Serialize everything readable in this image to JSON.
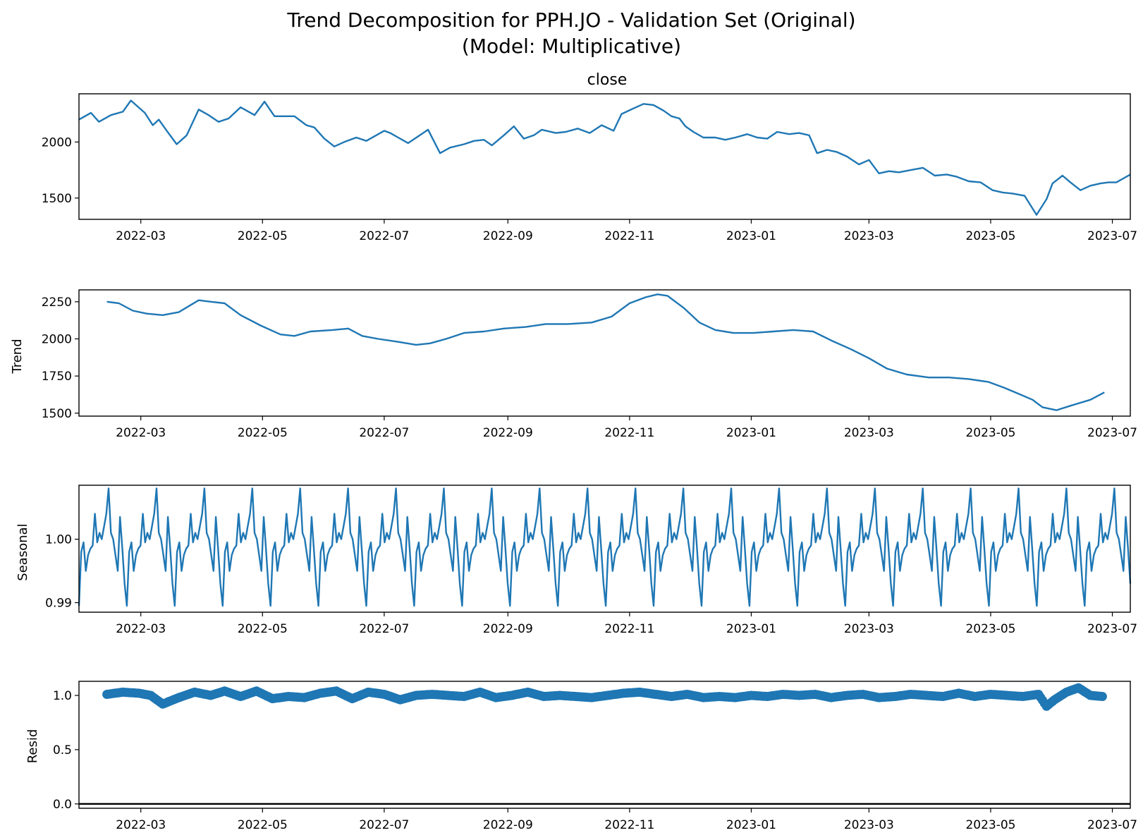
{
  "figure": {
    "title_line1": "Trend Decomposition for PPH.JO - Validation Set (Original)",
    "title_line2": "(Model: Multiplicative)"
  },
  "colors": {
    "series": "#1f77b4",
    "axes": "#000000",
    "background": "#ffffff"
  },
  "chart_data": [
    {
      "type": "line",
      "title": "close",
      "ylabel": "",
      "xlim": [
        "2022-01-29",
        "2023-07-10"
      ],
      "ylim": [
        1310,
        2430
      ],
      "yticks": [
        1500,
        2000
      ],
      "ytick_labels": [
        "1500",
        "2000"
      ],
      "xticks": [
        "2022-03-01",
        "2022-05-01",
        "2022-07-01",
        "2022-09-01",
        "2022-11-01",
        "2023-01-01",
        "2023-03-01",
        "2023-05-01",
        "2023-07-01"
      ],
      "xtick_labels": [
        "2022-03",
        "2022-05",
        "2022-07",
        "2022-09",
        "2022-11",
        "2023-01",
        "2023-03",
        "2023-05",
        "2023-07"
      ],
      "x": [
        "2022-01-29",
        "2022-02-04",
        "2022-02-08",
        "2022-02-14",
        "2022-02-20",
        "2022-02-24",
        "2022-03-03",
        "2022-03-07",
        "2022-03-10",
        "2022-03-14",
        "2022-03-19",
        "2022-03-24",
        "2022-03-30",
        "2022-04-04",
        "2022-04-09",
        "2022-04-14",
        "2022-04-20",
        "2022-04-27",
        "2022-05-02",
        "2022-05-07",
        "2022-05-12",
        "2022-05-17",
        "2022-05-23",
        "2022-05-27",
        "2022-06-01",
        "2022-06-06",
        "2022-06-11",
        "2022-06-17",
        "2022-06-22",
        "2022-06-27",
        "2022-07-01",
        "2022-07-04",
        "2022-07-08",
        "2022-07-13",
        "2022-07-18",
        "2022-07-23",
        "2022-07-29",
        "2022-08-03",
        "2022-08-10",
        "2022-08-15",
        "2022-08-20",
        "2022-08-24",
        "2022-08-30",
        "2022-09-04",
        "2022-09-09",
        "2022-09-14",
        "2022-09-18",
        "2022-09-25",
        "2022-09-30",
        "2022-10-06",
        "2022-10-12",
        "2022-10-18",
        "2022-10-24",
        "2022-10-28",
        "2022-11-03",
        "2022-11-08",
        "2022-11-13",
        "2022-11-18",
        "2022-11-22",
        "2022-11-26",
        "2022-11-29",
        "2022-12-03",
        "2022-12-08",
        "2022-12-14",
        "2022-12-19",
        "2022-12-24",
        "2022-12-30",
        "2023-01-04",
        "2023-01-09",
        "2023-01-14",
        "2023-01-20",
        "2023-01-25",
        "2023-01-30",
        "2023-02-03",
        "2023-02-08",
        "2023-02-13",
        "2023-02-18",
        "2023-02-24",
        "2023-03-01",
        "2023-03-06",
        "2023-03-11",
        "2023-03-16",
        "2023-03-22",
        "2023-03-28",
        "2023-04-03",
        "2023-04-09",
        "2023-04-14",
        "2023-04-20",
        "2023-04-26",
        "2023-05-02",
        "2023-05-07",
        "2023-05-12",
        "2023-05-18",
        "2023-05-24",
        "2023-05-29",
        "2023-06-01",
        "2023-06-06",
        "2023-06-10",
        "2023-06-15",
        "2023-06-20",
        "2023-06-25",
        "2023-06-29",
        "2023-07-03",
        "2023-07-10"
      ],
      "values": [
        2200,
        2260,
        2180,
        2240,
        2270,
        2370,
        2260,
        2150,
        2200,
        2100,
        1980,
        2060,
        2290,
        2240,
        2180,
        2210,
        2310,
        2240,
        2360,
        2230,
        2230,
        2230,
        2150,
        2130,
        2030,
        1960,
        2000,
        2040,
        2010,
        2060,
        2100,
        2080,
        2040,
        1990,
        2050,
        2110,
        1900,
        1950,
        1980,
        2010,
        2020,
        1970,
        2060,
        2140,
        2030,
        2060,
        2110,
        2080,
        2090,
        2120,
        2080,
        2150,
        2100,
        2250,
        2300,
        2340,
        2330,
        2280,
        2230,
        2210,
        2140,
        2090,
        2040,
        2040,
        2020,
        2040,
        2070,
        2040,
        2030,
        2090,
        2070,
        2080,
        2060,
        1900,
        1930,
        1910,
        1870,
        1800,
        1840,
        1720,
        1740,
        1730,
        1750,
        1770,
        1700,
        1710,
        1690,
        1650,
        1640,
        1570,
        1550,
        1540,
        1520,
        1350,
        1490,
        1630,
        1700,
        1640,
        1570,
        1610,
        1630,
        1640,
        1640,
        1710
      ]
    },
    {
      "type": "line",
      "title": "",
      "ylabel": "Trend",
      "xlim": [
        "2022-01-29",
        "2023-07-10"
      ],
      "ylim": [
        1480,
        2330
      ],
      "yticks": [
        1500,
        1750,
        2000,
        2250
      ],
      "ytick_labels": [
        "1500",
        "1750",
        "2000",
        "2250"
      ],
      "xticks": [
        "2022-03-01",
        "2022-05-01",
        "2022-07-01",
        "2022-09-01",
        "2022-11-01",
        "2023-01-01",
        "2023-03-01",
        "2023-05-01",
        "2023-07-01"
      ],
      "xtick_labels": [
        "2022-03",
        "2022-05",
        "2022-07",
        "2022-09",
        "2022-11",
        "2023-01",
        "2023-03",
        "2023-05",
        "2023-07"
      ],
      "x": [
        "2022-02-12",
        "2022-02-18",
        "2022-02-25",
        "2022-03-04",
        "2022-03-12",
        "2022-03-20",
        "2022-03-30",
        "2022-04-05",
        "2022-04-12",
        "2022-04-20",
        "2022-04-30",
        "2022-05-10",
        "2022-05-17",
        "2022-05-25",
        "2022-06-05",
        "2022-06-13",
        "2022-06-20",
        "2022-06-28",
        "2022-07-08",
        "2022-07-17",
        "2022-07-24",
        "2022-08-01",
        "2022-08-10",
        "2022-08-20",
        "2022-08-30",
        "2022-09-10",
        "2022-09-20",
        "2022-10-01",
        "2022-10-13",
        "2022-10-23",
        "2022-11-01",
        "2022-11-09",
        "2022-11-15",
        "2022-11-20",
        "2022-11-28",
        "2022-12-06",
        "2022-12-14",
        "2022-12-23",
        "2023-01-02",
        "2023-01-12",
        "2023-01-22",
        "2023-02-01",
        "2023-02-10",
        "2023-02-20",
        "2023-03-01",
        "2023-03-10",
        "2023-03-20",
        "2023-03-31",
        "2023-04-10",
        "2023-04-20",
        "2023-04-30",
        "2023-05-08",
        "2023-05-15",
        "2023-05-22",
        "2023-05-27",
        "2023-06-03",
        "2023-06-10",
        "2023-06-20",
        "2023-06-27"
      ],
      "values": [
        2250,
        2240,
        2190,
        2170,
        2160,
        2180,
        2260,
        2250,
        2240,
        2160,
        2090,
        2030,
        2020,
        2050,
        2060,
        2070,
        2020,
        2000,
        1980,
        1960,
        1970,
        2000,
        2040,
        2050,
        2070,
        2080,
        2100,
        2100,
        2110,
        2150,
        2240,
        2280,
        2300,
        2290,
        2210,
        2110,
        2060,
        2040,
        2040,
        2050,
        2060,
        2050,
        1990,
        1930,
        1870,
        1800,
        1760,
        1740,
        1740,
        1730,
        1710,
        1670,
        1630,
        1590,
        1540,
        1520,
        1550,
        1590,
        1640
      ]
    },
    {
      "type": "line",
      "title": "",
      "ylabel": "Seasonal",
      "xlim": [
        "2022-01-29",
        "2023-07-10"
      ],
      "ylim": [
        0.9885,
        1.0085
      ],
      "yticks": [
        0.99,
        1.0
      ],
      "ytick_labels": [
        "0.99",
        "1.00"
      ],
      "xticks": [
        "2022-03-01",
        "2022-05-01",
        "2022-07-01",
        "2022-09-01",
        "2022-11-01",
        "2023-01-01",
        "2023-03-01",
        "2023-05-01",
        "2023-07-01"
      ],
      "xtick_labels": [
        "2022-03",
        "2022-05",
        "2022-07",
        "2022-09",
        "2022-11",
        "2023-01",
        "2023-03",
        "2023-05",
        "2023-07"
      ],
      "period_values": [
        0.9895,
        0.998,
        0.9995,
        0.995,
        0.9975,
        0.9985,
        0.999,
        1.004,
        0.9995,
        1.001,
        1.0,
        1.002,
        1.004,
        1.008,
        1.001,
        1.0,
        0.9975,
        0.995,
        1.0035,
        0.9985,
        0.993
      ],
      "values": [
        0.9895,
        0.998,
        0.9995,
        0.995,
        0.9975,
        0.9985,
        0.999,
        1.004,
        0.9995,
        1.001,
        1.0,
        1.002,
        1.004,
        1.008,
        1.001,
        1.0,
        0.9975,
        0.995,
        1.0035,
        0.9985,
        0.993,
        0.9895,
        0.998,
        0.9995,
        0.995,
        0.9975,
        0.9985,
        0.999,
        1.004,
        0.9995,
        1.001,
        1.0,
        1.002,
        1.004,
        1.008,
        1.001,
        1.0,
        0.9975,
        0.995,
        1.0035,
        0.9985,
        0.993,
        0.9895,
        0.998,
        0.9995,
        0.995,
        0.9975,
        0.9985,
        0.999,
        1.004,
        0.9995,
        1.001,
        1.0,
        1.002,
        1.004,
        1.008,
        1.001,
        1.0,
        0.9975,
        0.995,
        1.0035,
        0.9985,
        0.993,
        0.9895,
        0.998,
        0.9995,
        0.995,
        0.9975,
        0.9985,
        0.999,
        1.004,
        0.9995,
        1.001,
        1.0,
        1.002,
        1.004,
        1.008,
        1.001,
        1.0,
        0.9975,
        0.995,
        1.0035,
        0.9985,
        0.993,
        0.9895,
        0.998,
        0.9995,
        0.995,
        0.9975,
        0.9985,
        0.999,
        1.004,
        0.9995,
        1.001,
        1.0,
        1.002,
        1.004,
        1.008,
        1.001,
        1.0,
        0.9975,
        0.995,
        1.0035,
        0.9985,
        0.993,
        0.9895,
        0.998,
        0.9995,
        0.995,
        0.9975,
        0.9985,
        0.999,
        1.004,
        0.9995,
        1.001,
        1.0,
        1.002,
        1.004,
        1.008,
        1.001,
        1.0,
        0.9975,
        0.995,
        1.0035,
        0.9985,
        0.993,
        0.9895,
        0.998,
        0.9995,
        0.995,
        0.9975,
        0.9985,
        0.999,
        1.004,
        0.9995,
        1.001,
        1.0,
        1.002,
        1.004,
        1.008,
        1.001,
        1.0,
        0.9975,
        0.995,
        1.0035,
        0.9985,
        0.993,
        0.9895,
        0.998,
        0.9995,
        0.995,
        0.9975,
        0.9985,
        0.999,
        1.004,
        0.9995,
        1.001,
        1.0,
        1.002,
        1.004,
        1.008,
        1.001,
        1.0,
        0.9975,
        0.995,
        1.0035,
        0.9985,
        0.993,
        0.9895,
        0.998,
        0.9995,
        0.995,
        0.9975,
        0.9985,
        0.999,
        1.004,
        0.9995,
        1.001,
        1.0,
        1.002,
        1.004,
        1.008,
        1.001,
        1.0,
        0.9975,
        0.995,
        1.0035,
        0.9985,
        0.993,
        0.9895,
        0.998,
        0.9995,
        0.995,
        0.9975,
        0.9985,
        0.999,
        1.004,
        0.9995,
        1.001,
        1.0,
        1.002,
        1.004,
        1.008,
        1.001,
        1.0,
        0.9975,
        0.995,
        1.0035,
        0.9985,
        0.993,
        0.9895,
        0.998,
        0.9995,
        0.995,
        0.9975,
        0.9985,
        0.999,
        1.004,
        0.9995,
        1.001,
        1.0,
        1.002,
        1.004,
        1.008,
        1.001,
        1.0,
        0.9975,
        0.995,
        1.0035,
        0.9985,
        0.993,
        0.9895,
        0.998,
        0.9995,
        0.995,
        0.9975,
        0.9985,
        0.999,
        1.004,
        0.9995,
        1.001,
        1.0,
        1.002,
        1.004,
        1.008,
        1.001,
        1.0,
        0.9975,
        0.995,
        1.0035,
        0.9985,
        0.993,
        0.9895,
        0.998,
        0.9995,
        0.995,
        0.9975,
        0.9985,
        0.999,
        1.004,
        0.9995,
        1.001,
        1.0,
        1.002,
        1.004,
        1.008,
        1.001,
        1.0,
        0.9975,
        0.995,
        1.0035,
        0.9985,
        0.993,
        0.9895,
        0.998,
        0.9995,
        0.995,
        0.9975,
        0.9985,
        0.999,
        1.004,
        0.9995,
        1.001,
        1.0,
        1.002,
        1.004,
        1.008,
        1.001,
        1.0,
        0.9975,
        0.995,
        1.0035,
        0.9985,
        0.993,
        0.9895,
        0.998,
        0.9995,
        0.995,
        0.9975,
        0.9985,
        0.999,
        1.004,
        0.9995,
        1.001,
        1.0,
        1.002,
        1.004,
        1.008,
        1.001,
        1.0,
        0.9975,
        0.995,
        1.0035,
        0.9985,
        0.993,
        0.9895,
        0.998,
        0.9995,
        0.995,
        0.9975,
        0.9985,
        0.999,
        1.004,
        0.9995,
        1.001,
        1.0,
        1.002,
        1.004,
        1.008,
        1.001,
        1.0,
        0.9975,
        0.995,
        1.0035,
        0.9985,
        0.993,
        0.9895,
        0.998,
        0.9995,
        0.995,
        0.9975,
        0.9985,
        0.999,
        1.004,
        0.9995,
        1.001,
        1.0,
        1.002,
        1.004,
        1.008,
        1.001,
        1.0,
        0.9975,
        0.995,
        1.0035,
        0.9985,
        0.993,
        0.9895,
        0.998,
        0.9995,
        0.995,
        0.9975,
        0.9985,
        0.999,
        1.004,
        0.9995,
        1.001,
        1.0,
        1.002,
        1.004,
        1.008,
        1.001,
        1.0,
        0.9975,
        0.995,
        1.0035,
        0.9985,
        0.993,
        0.9895,
        0.998,
        0.9995,
        0.995,
        0.9975,
        0.9985,
        0.999,
        1.004,
        0.9995,
        1.001,
        1.0,
        1.002,
        1.004,
        1.008,
        1.001,
        1.0,
        0.9975,
        0.995,
        1.0035,
        0.9985,
        0.993,
        0.9895,
        0.998,
        0.9995,
        0.995,
        0.9975,
        0.9985,
        0.999,
        1.004,
        0.9995,
        1.001,
        1.0,
        1.002,
        1.004,
        1.008,
        1.001,
        1.0,
        0.9975,
        0.995,
        1.0035,
        0.9985,
        0.993,
        0.9895,
        0.998,
        0.9995,
        0.995,
        0.9975,
        0.9985,
        0.999,
        1.004,
        0.9995,
        1.001,
        1.0,
        1.002,
        1.004,
        1.008,
        1.001,
        1.0,
        0.9975,
        0.995,
        1.0035,
        0.9985,
        0.993,
        0.9895,
        0.998,
        0.9995,
        0.995,
        0.9975,
        0.9985,
        0.999,
        1.004,
        0.9995,
        1.001,
        1.0,
        1.002,
        1.004,
        1.008,
        1.001,
        1.0,
        0.9975,
        0.995,
        1.0035,
        0.9985,
        0.993
      ]
    },
    {
      "type": "scatter",
      "title": "",
      "ylabel": "Resid",
      "xlim": [
        "2022-01-29",
        "2023-07-10"
      ],
      "ylim": [
        -0.04,
        1.13
      ],
      "yticks": [
        0.0,
        0.5,
        1.0
      ],
      "ytick_labels": [
        "0.0",
        "0.5",
        "1.0"
      ],
      "xticks": [
        "2022-03-01",
        "2022-05-01",
        "2022-07-01",
        "2022-09-01",
        "2022-11-01",
        "2023-01-01",
        "2023-03-01",
        "2023-05-01",
        "2023-07-01"
      ],
      "xtick_labels": [
        "2022-03",
        "2022-05",
        "2022-07",
        "2022-09",
        "2022-11",
        "2023-01",
        "2023-03",
        "2023-05",
        "2023-07"
      ],
      "baseline": 0.0,
      "x": [
        "2022-02-12",
        "2022-02-20",
        "2022-02-28",
        "2022-03-06",
        "2022-03-12",
        "2022-03-20",
        "2022-03-28",
        "2022-04-05",
        "2022-04-12",
        "2022-04-20",
        "2022-04-28",
        "2022-05-06",
        "2022-05-14",
        "2022-05-22",
        "2022-05-30",
        "2022-06-07",
        "2022-06-15",
        "2022-06-23",
        "2022-07-01",
        "2022-07-09",
        "2022-07-17",
        "2022-07-25",
        "2022-08-02",
        "2022-08-10",
        "2022-08-18",
        "2022-08-26",
        "2022-09-03",
        "2022-09-11",
        "2022-09-19",
        "2022-09-27",
        "2022-10-05",
        "2022-10-13",
        "2022-10-21",
        "2022-10-29",
        "2022-11-06",
        "2022-11-14",
        "2022-11-22",
        "2022-11-30",
        "2022-12-08",
        "2022-12-16",
        "2022-12-24",
        "2023-01-01",
        "2023-01-09",
        "2023-01-17",
        "2023-01-25",
        "2023-02-02",
        "2023-02-10",
        "2023-02-18",
        "2023-02-26",
        "2023-03-06",
        "2023-03-14",
        "2023-03-22",
        "2023-03-30",
        "2023-04-07",
        "2023-04-15",
        "2023-04-23",
        "2023-05-01",
        "2023-05-09",
        "2023-05-17",
        "2023-05-25",
        "2023-05-29",
        "2023-06-02",
        "2023-06-08",
        "2023-06-14",
        "2023-06-20",
        "2023-06-26"
      ],
      "values": [
        1.01,
        1.03,
        1.02,
        1.0,
        0.92,
        0.98,
        1.03,
        1.0,
        1.04,
        0.99,
        1.04,
        0.97,
        0.99,
        0.98,
        1.02,
        1.04,
        0.97,
        1.03,
        1.01,
        0.96,
        1.0,
        1.01,
        1.0,
        0.99,
        1.03,
        0.98,
        1.0,
        1.03,
        0.99,
        1.0,
        0.99,
        0.98,
        1.0,
        1.02,
        1.03,
        1.01,
        0.99,
        1.01,
        0.98,
        0.99,
        0.98,
        1.0,
        0.99,
        1.01,
        1.0,
        1.01,
        0.98,
        1.0,
        1.01,
        0.98,
        0.99,
        1.01,
        1.0,
        0.99,
        1.02,
        0.99,
        1.01,
        1.0,
        0.99,
        1.01,
        0.9,
        0.96,
        1.03,
        1.07,
        1.0,
        0.99
      ]
    }
  ]
}
